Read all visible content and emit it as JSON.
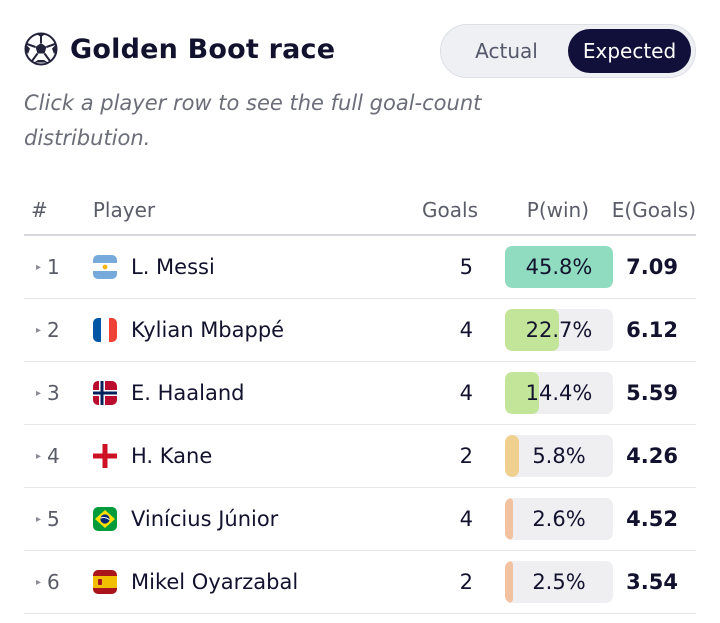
{
  "header": {
    "icon": "soccer-ball-icon",
    "title": "Golden Boot race",
    "toggle": {
      "options": [
        "Actual",
        "Expected"
      ],
      "selected": "Expected"
    }
  },
  "subtitle": "Click a player row to see the full goal-count distribution.",
  "table": {
    "columns": {
      "rank": "#",
      "player": "Player",
      "goals": "Goals",
      "pwin": "P(win)",
      "egoals": "E(Goals)"
    },
    "rows": [
      {
        "rank": "1",
        "player": "L. Messi",
        "flag": "argentina-flag-icon",
        "goals": "5",
        "pwin": "45.8%",
        "pwin_value": 45.8,
        "bar_color": "#8fdcc0",
        "egoals": "7.09"
      },
      {
        "rank": "2",
        "player": "Kylian Mbappé",
        "flag": "france-flag-icon",
        "goals": "4",
        "pwin": "22.7%",
        "pwin_value": 22.7,
        "bar_color": "#c2e59a",
        "egoals": "6.12"
      },
      {
        "rank": "3",
        "player": "E. Haaland",
        "flag": "norway-flag-icon",
        "goals": "4",
        "pwin": "14.4%",
        "pwin_value": 14.4,
        "bar_color": "#c2e59a",
        "egoals": "5.59"
      },
      {
        "rank": "4",
        "player": "H. Kane",
        "flag": "england-flag-icon",
        "goals": "2",
        "pwin": "5.8%",
        "pwin_value": 5.8,
        "bar_color": "#f0d08e",
        "egoals": "4.26"
      },
      {
        "rank": "5",
        "player": "Vinícius Júnior",
        "flag": "brazil-flag-icon",
        "goals": "4",
        "pwin": "2.6%",
        "pwin_value": 2.6,
        "bar_color": "#f2c2a0",
        "egoals": "4.52"
      },
      {
        "rank": "6",
        "player": "Mikel Oyarzabal",
        "flag": "spain-flag-icon",
        "goals": "2",
        "pwin": "2.5%",
        "pwin_value": 2.5,
        "bar_color": "#f2c2a0",
        "egoals": "3.54"
      }
    ]
  }
}
